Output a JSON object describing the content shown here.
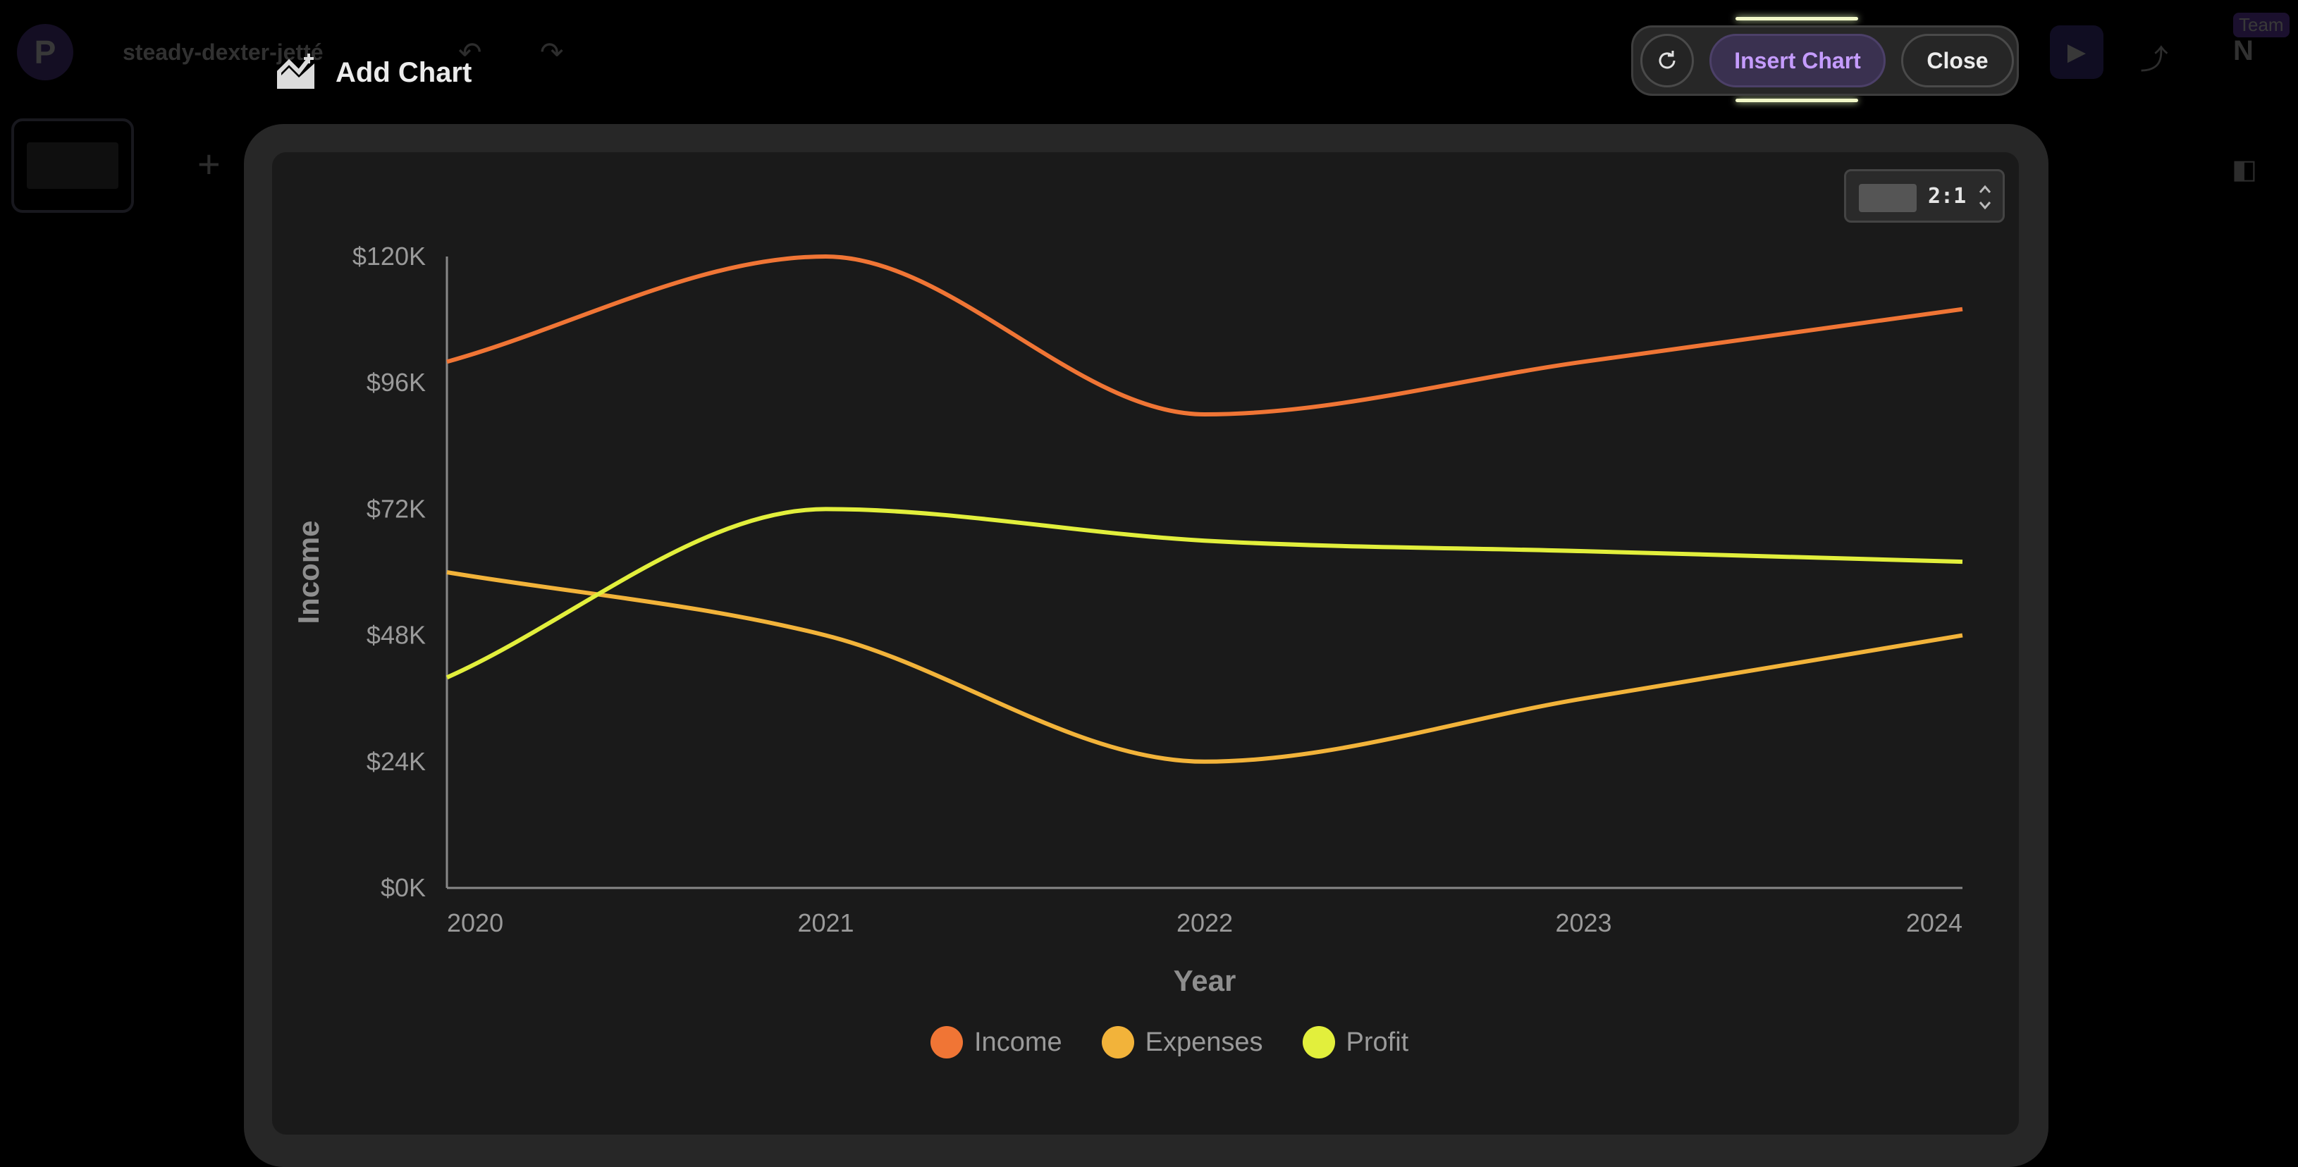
{
  "background": {
    "logo_letter": "P",
    "doc_title": "steady-dexter-jetté",
    "avatar_initial": "N",
    "team_badge": "Team"
  },
  "header": {
    "title": "Add Chart"
  },
  "toolbar": {
    "insert_label": "Insert Chart",
    "close_label": "Close"
  },
  "ratio": {
    "label": "2:1"
  },
  "chart_data": {
    "type": "line",
    "xlabel": "Year",
    "ylabel": "Income",
    "x": [
      "2020",
      "2021",
      "2022",
      "2023",
      "2024"
    ],
    "ylim": [
      0,
      120000
    ],
    "y_ticks": [
      "$0K",
      "$24K",
      "$48K",
      "$72K",
      "$96K",
      "$120K"
    ],
    "y_tick_values": [
      0,
      24000,
      48000,
      72000,
      96000,
      120000
    ],
    "grid": false,
    "legend_position": "bottom",
    "series": [
      {
        "name": "Income",
        "color": "#f07535",
        "values": [
          100000,
          120000,
          90000,
          100000,
          110000
        ]
      },
      {
        "name": "Expenses",
        "color": "#f2b33a",
        "values": [
          60000,
          48000,
          24000,
          36000,
          48000
        ]
      },
      {
        "name": "Profit",
        "color": "#e2ef3c",
        "values": [
          40000,
          72000,
          66000,
          64000,
          62000
        ]
      }
    ]
  }
}
